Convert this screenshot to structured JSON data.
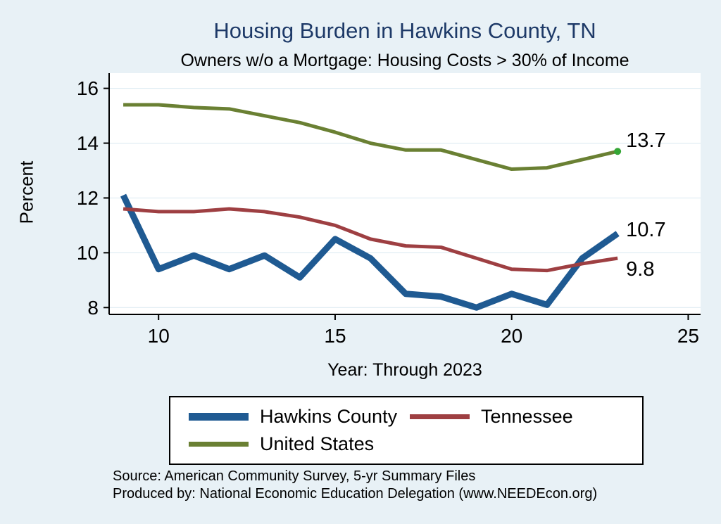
{
  "page": {
    "background": "#e8f1f6",
    "title_color": "#1e3a68",
    "plot_background": "#ffffff",
    "gridline_color": "#d9e8f0",
    "axis_color": "#000000"
  },
  "chart_data": {
    "type": "line",
    "title": "Housing Burden in Hawkins County, TN",
    "subtitle": "Owners w/o a Mortgage: Housing Costs > 30% of Income",
    "ylabel": "Percent",
    "xlabel": "Year: Through 2023",
    "x": [
      9,
      10,
      11,
      12,
      13,
      14,
      15,
      16,
      17,
      18,
      19,
      20,
      21,
      22,
      23
    ],
    "xticks": [
      10,
      15,
      20,
      25
    ],
    "yticks": [
      8,
      10,
      12,
      14,
      16
    ],
    "xlim": [
      8.6,
      25.35
    ],
    "ylim": [
      7.75,
      16.35
    ],
    "grid": "horizontal",
    "legend_position": "bottom",
    "series": [
      {
        "name": "Hawkins County",
        "color": "#1f5a92",
        "width": 9,
        "values": [
          12.1,
          9.4,
          9.9,
          9.4,
          9.9,
          9.1,
          10.5,
          9.8,
          8.5,
          8.4,
          8.0,
          8.5,
          8.1,
          9.8,
          10.7
        ],
        "end_label": "10.7",
        "label_dy": 4
      },
      {
        "name": "Tennessee",
        "color": "#9e3f42",
        "width": 5,
        "values": [
          11.6,
          11.5,
          11.5,
          11.6,
          11.5,
          11.3,
          11.0,
          10.5,
          10.25,
          10.2,
          9.8,
          9.4,
          9.35,
          9.6,
          9.8
        ],
        "end_label": "9.8",
        "label_dy": 25
      },
      {
        "name": "United States",
        "color": "#6a8033",
        "width": 5,
        "values": [
          15.4,
          15.4,
          15.3,
          15.25,
          15.0,
          14.75,
          14.4,
          14.0,
          13.75,
          13.75,
          13.4,
          13.05,
          13.1,
          13.4,
          13.7
        ],
        "end_label": "13.7",
        "label_dy": -6,
        "end_marker": true,
        "end_marker_color": "#35a635"
      }
    ]
  },
  "notes": {
    "source": "Source: American Community Survey, 5-yr Summary Files",
    "produced_by": "Produced by: National Economic Education Delegation (www.NEEDEcon.org)"
  }
}
